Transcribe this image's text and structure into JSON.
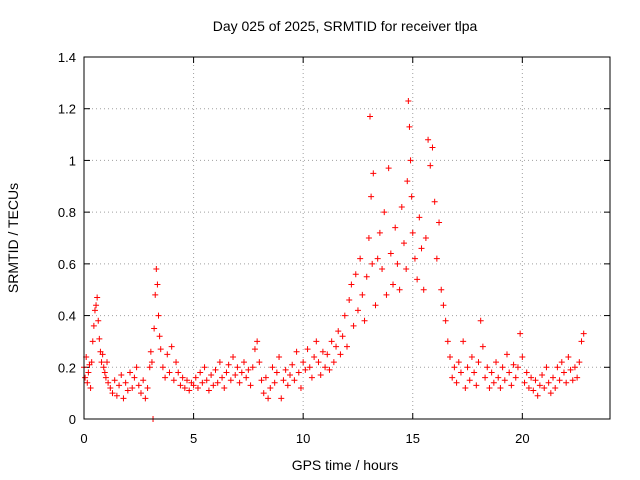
{
  "chart_data": {
    "type": "scatter",
    "title": "Day 025 of 2025, SRMTID for receiver tlpa",
    "xlabel": "GPS time / hours",
    "ylabel": "SRMTID / TECUs",
    "xlim": [
      0,
      24
    ],
    "ylim": [
      0,
      1.4
    ],
    "xticks": [
      0,
      5,
      10,
      15,
      20
    ],
    "yticks": [
      0,
      0.2,
      0.4,
      0.6,
      0.8,
      1,
      1.2,
      1.4
    ],
    "xtick_labels": [
      "0",
      "5",
      "10",
      "15",
      "20"
    ],
    "ytick_labels": [
      "0",
      "0.2",
      "0.4",
      "0.6",
      "0.8",
      "1",
      "1.2",
      "1.4"
    ],
    "grid": true,
    "marker": "+",
    "color": "#ff0000",
    "series": [
      {
        "name": "SRMTID",
        "points": [
          [
            0.0,
            0.2
          ],
          [
            0.05,
            0.16
          ],
          [
            0.1,
            0.24
          ],
          [
            0.15,
            0.14
          ],
          [
            0.2,
            0.18
          ],
          [
            0.25,
            0.21
          ],
          [
            0.3,
            0.12
          ],
          [
            0.35,
            0.22
          ],
          [
            0.4,
            0.3
          ],
          [
            0.45,
            0.36
          ],
          [
            0.5,
            0.42
          ],
          [
            0.55,
            0.44
          ],
          [
            0.6,
            0.47
          ],
          [
            0.65,
            0.38
          ],
          [
            0.7,
            0.31
          ],
          [
            0.75,
            0.26
          ],
          [
            0.8,
            0.22
          ],
          [
            0.85,
            0.25
          ],
          [
            0.9,
            0.2
          ],
          [
            0.95,
            0.18
          ],
          [
            1.0,
            0.16
          ],
          [
            1.05,
            0.22
          ],
          [
            1.1,
            0.14
          ],
          [
            1.2,
            0.12
          ],
          [
            1.3,
            0.1
          ],
          [
            1.4,
            0.15
          ],
          [
            1.5,
            0.09
          ],
          [
            1.6,
            0.13
          ],
          [
            1.7,
            0.17
          ],
          [
            1.8,
            0.08
          ],
          [
            1.9,
            0.14
          ],
          [
            2.0,
            0.11
          ],
          [
            2.1,
            0.18
          ],
          [
            2.2,
            0.12
          ],
          [
            2.3,
            0.16
          ],
          [
            2.4,
            0.2
          ],
          [
            2.5,
            0.13
          ],
          [
            2.6,
            0.1
          ],
          [
            2.7,
            0.15
          ],
          [
            2.8,
            0.08
          ],
          [
            2.9,
            0.12
          ],
          [
            3.0,
            0.2
          ],
          [
            3.05,
            0.26
          ],
          [
            3.1,
            0.22
          ],
          [
            3.15,
            0.0
          ],
          [
            3.2,
            0.35
          ],
          [
            3.25,
            0.48
          ],
          [
            3.3,
            0.58
          ],
          [
            3.35,
            0.52
          ],
          [
            3.4,
            0.4
          ],
          [
            3.45,
            0.32
          ],
          [
            3.5,
            0.27
          ],
          [
            3.6,
            0.2
          ],
          [
            3.7,
            0.16
          ],
          [
            3.8,
            0.25
          ],
          [
            3.9,
            0.18
          ],
          [
            4.0,
            0.28
          ],
          [
            4.1,
            0.15
          ],
          [
            4.2,
            0.22
          ],
          [
            4.3,
            0.18
          ],
          [
            4.4,
            0.13
          ],
          [
            4.5,
            0.16
          ],
          [
            4.6,
            0.12
          ],
          [
            4.7,
            0.15
          ],
          [
            4.8,
            0.11
          ],
          [
            4.9,
            0.14
          ],
          [
            5.0,
            0.13
          ],
          [
            5.1,
            0.16
          ],
          [
            5.2,
            0.12
          ],
          [
            5.3,
            0.18
          ],
          [
            5.4,
            0.14
          ],
          [
            5.5,
            0.2
          ],
          [
            5.6,
            0.15
          ],
          [
            5.7,
            0.11
          ],
          [
            5.8,
            0.17
          ],
          [
            5.9,
            0.13
          ],
          [
            6.0,
            0.19
          ],
          [
            6.1,
            0.14
          ],
          [
            6.2,
            0.22
          ],
          [
            6.3,
            0.16
          ],
          [
            6.4,
            0.12
          ],
          [
            6.5,
            0.18
          ],
          [
            6.6,
            0.21
          ],
          [
            6.7,
            0.15
          ],
          [
            6.8,
            0.24
          ],
          [
            6.9,
            0.17
          ],
          [
            7.0,
            0.2
          ],
          [
            7.1,
            0.14
          ],
          [
            7.2,
            0.18
          ],
          [
            7.3,
            0.22
          ],
          [
            7.4,
            0.16
          ],
          [
            7.5,
            0.19
          ],
          [
            7.6,
            0.13
          ],
          [
            7.7,
            0.2
          ],
          [
            7.8,
            0.27
          ],
          [
            7.9,
            0.3
          ],
          [
            8.0,
            0.22
          ],
          [
            8.1,
            0.15
          ],
          [
            8.2,
            0.1
          ],
          [
            8.3,
            0.16
          ],
          [
            8.4,
            0.08
          ],
          [
            8.5,
            0.12
          ],
          [
            8.6,
            0.2
          ],
          [
            8.7,
            0.14
          ],
          [
            8.8,
            0.18
          ],
          [
            8.9,
            0.24
          ],
          [
            9.0,
            0.08
          ],
          [
            9.1,
            0.15
          ],
          [
            9.2,
            0.19
          ],
          [
            9.3,
            0.13
          ],
          [
            9.4,
            0.17
          ],
          [
            9.5,
            0.21
          ],
          [
            9.6,
            0.15
          ],
          [
            9.7,
            0.26
          ],
          [
            9.8,
            0.18
          ],
          [
            9.9,
            0.12
          ],
          [
            10.0,
            0.22
          ],
          [
            10.1,
            0.19
          ],
          [
            10.2,
            0.27
          ],
          [
            10.3,
            0.2
          ],
          [
            10.4,
            0.16
          ],
          [
            10.5,
            0.24
          ],
          [
            10.6,
            0.3
          ],
          [
            10.7,
            0.22
          ],
          [
            10.8,
            0.17
          ],
          [
            10.9,
            0.26
          ],
          [
            11.0,
            0.2
          ],
          [
            11.1,
            0.25
          ],
          [
            11.2,
            0.19
          ],
          [
            11.3,
            0.3
          ],
          [
            11.4,
            0.22
          ],
          [
            11.5,
            0.28
          ],
          [
            11.6,
            0.34
          ],
          [
            11.7,
            0.25
          ],
          [
            11.8,
            0.32
          ],
          [
            11.9,
            0.4
          ],
          [
            12.0,
            0.28
          ],
          [
            12.1,
            0.46
          ],
          [
            12.2,
            0.52
          ],
          [
            12.3,
            0.36
          ],
          [
            12.4,
            0.56
          ],
          [
            12.5,
            0.42
          ],
          [
            12.6,
            0.62
          ],
          [
            12.7,
            0.48
          ],
          [
            12.8,
            0.38
          ],
          [
            12.9,
            0.55
          ],
          [
            13.0,
            0.7
          ],
          [
            13.05,
            1.17
          ],
          [
            13.1,
            0.86
          ],
          [
            13.15,
            0.6
          ],
          [
            13.2,
            0.95
          ],
          [
            13.3,
            0.44
          ],
          [
            13.4,
            0.62
          ],
          [
            13.5,
            0.72
          ],
          [
            13.6,
            0.58
          ],
          [
            13.7,
            0.8
          ],
          [
            13.8,
            0.48
          ],
          [
            13.9,
            0.97
          ],
          [
            14.0,
            0.64
          ],
          [
            14.1,
            0.52
          ],
          [
            14.2,
            0.74
          ],
          [
            14.3,
            0.6
          ],
          [
            14.4,
            0.5
          ],
          [
            14.5,
            0.82
          ],
          [
            14.6,
            0.68
          ],
          [
            14.7,
            0.58
          ],
          [
            14.75,
            0.92
          ],
          [
            14.8,
            1.23
          ],
          [
            14.85,
            1.13
          ],
          [
            14.9,
            1.0
          ],
          [
            14.95,
            0.86
          ],
          [
            15.0,
            0.72
          ],
          [
            15.1,
            0.62
          ],
          [
            15.2,
            0.54
          ],
          [
            15.3,
            0.78
          ],
          [
            15.4,
            0.66
          ],
          [
            15.5,
            0.5
          ],
          [
            15.6,
            0.7
          ],
          [
            15.7,
            1.08
          ],
          [
            15.8,
            0.98
          ],
          [
            15.9,
            1.05
          ],
          [
            16.0,
            0.84
          ],
          [
            16.1,
            0.62
          ],
          [
            16.2,
            0.76
          ],
          [
            16.3,
            0.5
          ],
          [
            16.4,
            0.44
          ],
          [
            16.5,
            0.38
          ],
          [
            16.6,
            0.3
          ],
          [
            16.7,
            0.24
          ],
          [
            16.8,
            0.16
          ],
          [
            16.9,
            0.2
          ],
          [
            17.0,
            0.14
          ],
          [
            17.1,
            0.22
          ],
          [
            17.2,
            0.18
          ],
          [
            17.3,
            0.3
          ],
          [
            17.4,
            0.12
          ],
          [
            17.5,
            0.2
          ],
          [
            17.6,
            0.15
          ],
          [
            17.7,
            0.24
          ],
          [
            17.8,
            0.18
          ],
          [
            17.9,
            0.13
          ],
          [
            18.0,
            0.22
          ],
          [
            18.1,
            0.38
          ],
          [
            18.2,
            0.28
          ],
          [
            18.3,
            0.16
          ],
          [
            18.4,
            0.2
          ],
          [
            18.5,
            0.12
          ],
          [
            18.6,
            0.18
          ],
          [
            18.7,
            0.14
          ],
          [
            18.8,
            0.22
          ],
          [
            18.9,
            0.16
          ],
          [
            19.0,
            0.12
          ],
          [
            19.1,
            0.2
          ],
          [
            19.2,
            0.15
          ],
          [
            19.3,
            0.25
          ],
          [
            19.4,
            0.18
          ],
          [
            19.5,
            0.13
          ],
          [
            19.6,
            0.21
          ],
          [
            19.7,
            0.16
          ],
          [
            19.8,
            0.2
          ],
          [
            19.9,
            0.33
          ],
          [
            20.0,
            0.24
          ],
          [
            20.1,
            0.14
          ],
          [
            20.2,
            0.18
          ],
          [
            20.3,
            0.12
          ],
          [
            20.4,
            0.16
          ],
          [
            20.5,
            0.11
          ],
          [
            20.6,
            0.15
          ],
          [
            20.7,
            0.09
          ],
          [
            20.8,
            0.13
          ],
          [
            20.9,
            0.17
          ],
          [
            21.0,
            0.12
          ],
          [
            21.1,
            0.2
          ],
          [
            21.2,
            0.14
          ],
          [
            21.3,
            0.1
          ],
          [
            21.4,
            0.16
          ],
          [
            21.5,
            0.12
          ],
          [
            21.6,
            0.2
          ],
          [
            21.7,
            0.15
          ],
          [
            21.8,
            0.22
          ],
          [
            21.9,
            0.18
          ],
          [
            22.0,
            0.14
          ],
          [
            22.1,
            0.24
          ],
          [
            22.2,
            0.19
          ],
          [
            22.3,
            0.15
          ],
          [
            22.4,
            0.2
          ],
          [
            22.5,
            0.16
          ],
          [
            22.6,
            0.22
          ],
          [
            22.7,
            0.3
          ],
          [
            22.8,
            0.33
          ]
        ]
      }
    ]
  }
}
